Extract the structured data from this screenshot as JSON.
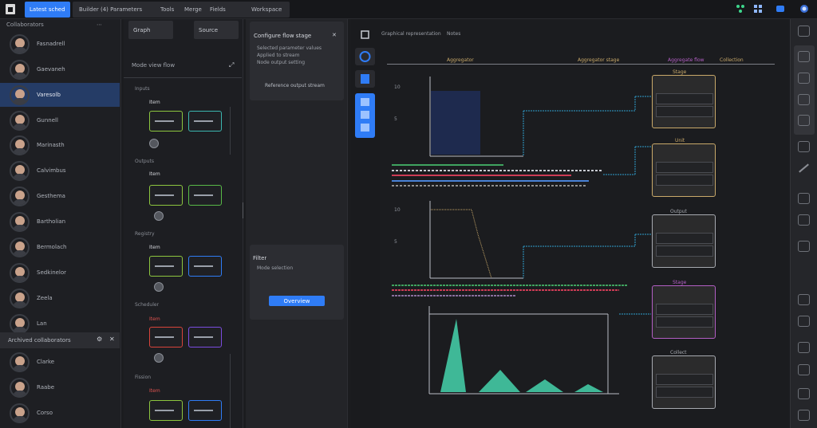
{
  "topbar": {
    "active_tab": "Latest schedule",
    "group_items": [
      "Builder (4) Parameters",
      "Tools",
      "Merge",
      "Fields",
      "Workspace"
    ],
    "right_icons": [
      "nodes-icon",
      "grid-icon",
      "globe-icon"
    ]
  },
  "contacts": {
    "header": "Collaborators",
    "items": [
      "Fasnadrell",
      "Gaevaneh",
      "Varesolb",
      "Gunnell",
      "Marinasth",
      "Calvimbus",
      "Gesthema",
      "Bartholian",
      "Bermolach",
      "Sedkinelor",
      "Zeela",
      "Lan"
    ],
    "section_label": "Archived collaborators",
    "archived": [
      "Clarke",
      "Raabe",
      "Corso"
    ]
  },
  "col2": {
    "top_buttons": [
      "Graph",
      "Source"
    ],
    "header": "Mode view flow",
    "groups": [
      {
        "label": "Inputs",
        "tag": "Item"
      },
      {
        "label": "Outputs",
        "tag": "Item"
      },
      {
        "label": "Registry",
        "tag": "Item"
      },
      {
        "label": "Scheduler",
        "tag": "Item"
      },
      {
        "label": "Fission",
        "tag": "Item"
      }
    ]
  },
  "col3": {
    "card_title": "Configure flow stage",
    "card_lines": [
      "Selected parameter values",
      "Applied to stream",
      "Node output setting"
    ],
    "card_footer": "Reference output stream",
    "form_title": "Filter",
    "form_line": "Mode  selection",
    "apply_label": "Overview"
  },
  "main": {
    "toolbar": [
      "Graphical representation",
      "Notes"
    ],
    "headers": [
      "Aggregator",
      "Aggregator stage",
      "Aggregate flow",
      "Collection"
    ],
    "block_titles": [
      "Stage",
      "Unit",
      "Output",
      "Stage",
      "Collect"
    ],
    "accent": "#2f7cf6"
  }
}
